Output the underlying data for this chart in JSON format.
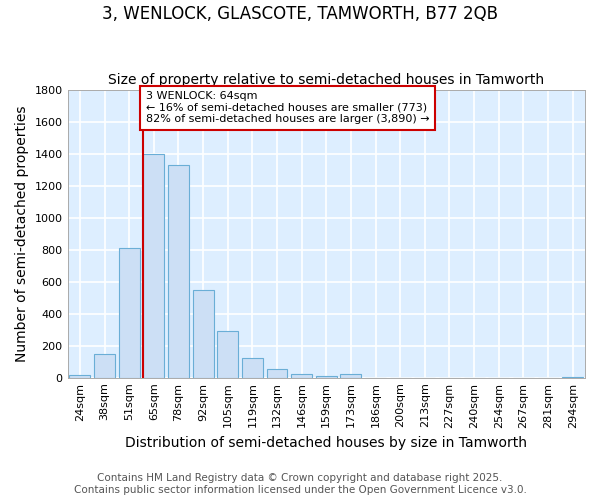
{
  "title": "3, WENLOCK, GLASCOTE, TAMWORTH, B77 2QB",
  "subtitle": "Size of property relative to semi-detached houses in Tamworth",
  "xlabel": "Distribution of semi-detached houses by size in Tamworth",
  "ylabel": "Number of semi-detached properties",
  "categories": [
    "24sqm",
    "38sqm",
    "51sqm",
    "65sqm",
    "78sqm",
    "92sqm",
    "105sqm",
    "119sqm",
    "132sqm",
    "146sqm",
    "159sqm",
    "173sqm",
    "186sqm",
    "200sqm",
    "213sqm",
    "227sqm",
    "240sqm",
    "254sqm",
    "267sqm",
    "281sqm",
    "294sqm"
  ],
  "values": [
    15,
    150,
    810,
    1400,
    1330,
    550,
    290,
    120,
    55,
    25,
    10,
    20,
    0,
    0,
    0,
    0,
    0,
    0,
    0,
    0,
    5
  ],
  "bar_color": "#ccdff5",
  "bar_edge_color": "#6aaed6",
  "annotation_text": "3 WENLOCK: 64sqm\n← 16% of semi-detached houses are smaller (773)\n82% of semi-detached houses are larger (3,890) →",
  "annotation_box_color": "#ffffff",
  "annotation_box_edge_color": "#cc0000",
  "vline_color": "#cc0000",
  "ylim": [
    0,
    1800
  ],
  "yticks": [
    0,
    200,
    400,
    600,
    800,
    1000,
    1200,
    1400,
    1600,
    1800
  ],
  "plot_bg_color": "#ddeeff",
  "fig_bg_color": "#ffffff",
  "grid_color": "#ffffff",
  "footer_text": "Contains HM Land Registry data © Crown copyright and database right 2025.\nContains public sector information licensed under the Open Government Licence v3.0.",
  "title_fontsize": 12,
  "subtitle_fontsize": 10,
  "axis_label_fontsize": 10,
  "tick_fontsize": 8,
  "footer_fontsize": 7.5,
  "vline_index": 3
}
